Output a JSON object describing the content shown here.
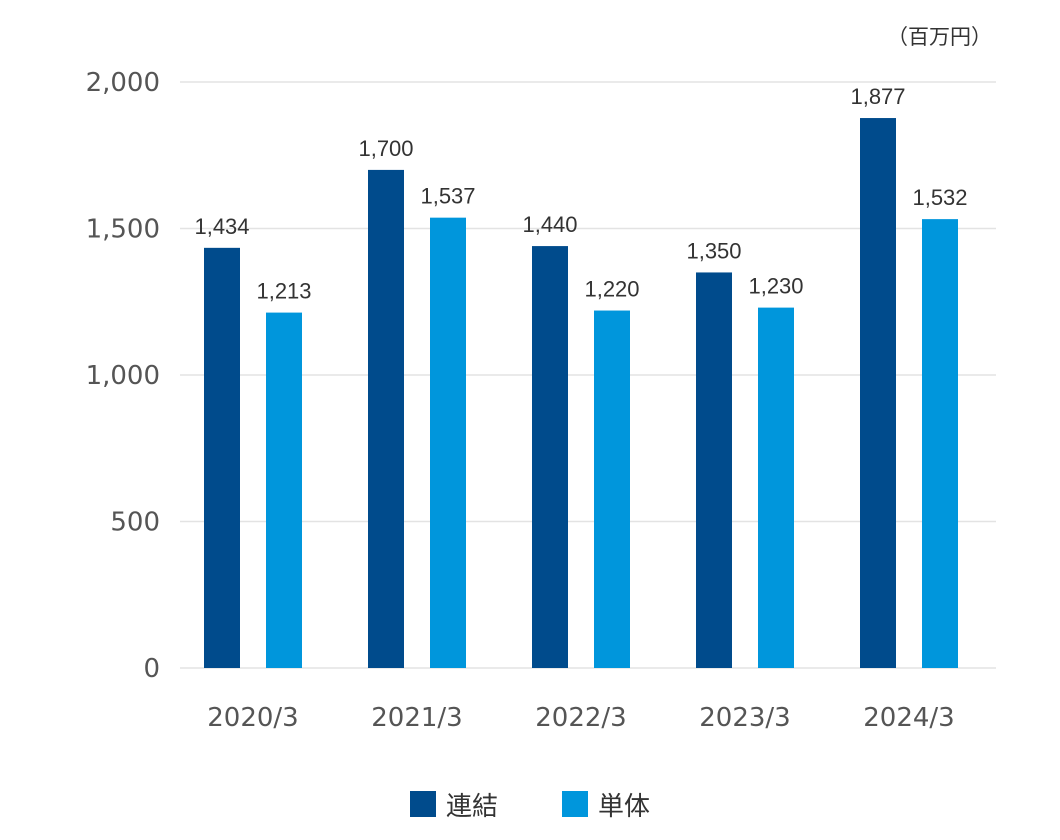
{
  "unit_label": "（百万円）",
  "chart_data": {
    "type": "bar",
    "categories": [
      "2020/3",
      "2021/3",
      "2022/3",
      "2023/3",
      "2024/3"
    ],
    "series": [
      {
        "name": "連結",
        "color": "#004b8c",
        "values": [
          1434,
          1700,
          1440,
          1350,
          1877
        ],
        "labels": [
          "1,434",
          "1,700",
          "1,440",
          "1,350",
          "1,877"
        ]
      },
      {
        "name": "単体",
        "color": "#0096dc",
        "values": [
          1213,
          1537,
          1220,
          1230,
          1532
        ],
        "labels": [
          "1,213",
          "1,537",
          "1,220",
          "1,230",
          "1,532"
        ]
      }
    ],
    "ylim": [
      0,
      2000
    ],
    "yticks": [
      0,
      500,
      1000,
      1500,
      2000
    ],
    "ytick_labels": [
      "0",
      "500",
      "1,000",
      "1,500",
      "2,000"
    ],
    "grid": true,
    "legend_position": "bottom"
  }
}
